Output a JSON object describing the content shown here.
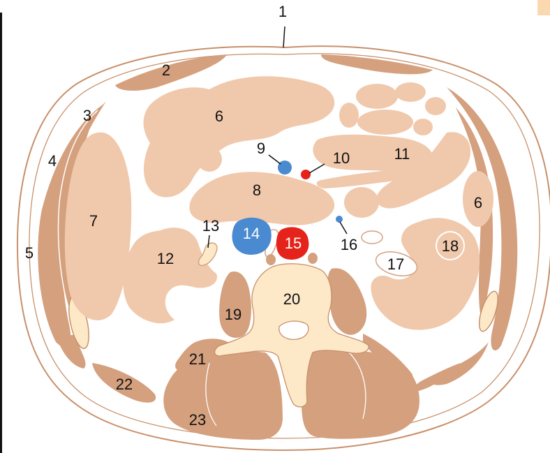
{
  "colors": {
    "skin_line": "#c8906a",
    "muscle": "#d4a07e",
    "viscera": "#f0c9ac",
    "bone": "#fde8c8",
    "vein": "#4a8ad0",
    "artery": "#e5231b",
    "outline": "#ffffff"
  },
  "labels": {
    "l1": "1",
    "l2": "2",
    "l3": "3",
    "l4": "4",
    "l5": "5",
    "l6a": "6",
    "l6b": "6",
    "l7": "7",
    "l8": "8",
    "l9": "9",
    "l10": "10",
    "l11": "11",
    "l12": "12",
    "l13": "13",
    "l14": "14",
    "l15": "15",
    "l16": "16",
    "l17": "17",
    "l18": "18",
    "l19": "19",
    "l20": "20",
    "l21": "21",
    "l22": "22",
    "l23": "23"
  }
}
